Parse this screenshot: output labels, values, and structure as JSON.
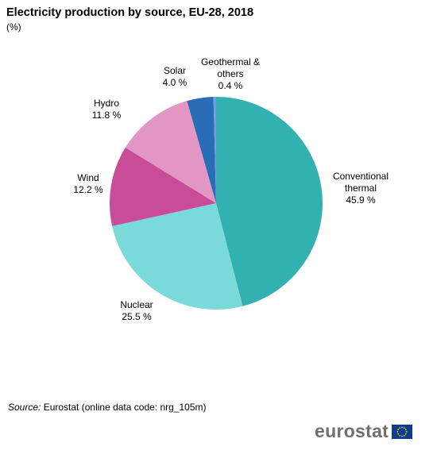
{
  "header": {
    "title": "Electricity production by source, EU-28, 2018",
    "subtitle": "(%)"
  },
  "chart_data": {
    "type": "pie",
    "title": "Electricity production by source, EU-28, 2018",
    "unit": "%",
    "slices": [
      {
        "label": "Conventional thermal",
        "label_lines": [
          "Conventional",
          "thermal"
        ],
        "value": 45.9,
        "value_text": "45.9 %",
        "color": "#33b1b0"
      },
      {
        "label": "Nuclear",
        "label_lines": [
          "Nuclear"
        ],
        "value": 25.5,
        "value_text": "25.5 %",
        "color": "#7adada"
      },
      {
        "label": "Wind",
        "label_lines": [
          "Wind"
        ],
        "value": 12.2,
        "value_text": "12.2 %",
        "color": "#c94c98"
      },
      {
        "label": "Hydro",
        "label_lines": [
          "Hydro"
        ],
        "value": 11.8,
        "value_text": "11.8 %",
        "color": "#e196c4"
      },
      {
        "label": "Solar",
        "label_lines": [
          "Solar"
        ],
        "value": 4.0,
        "value_text": "4.0 %",
        "color": "#2a6db7"
      },
      {
        "label": "Geothermal & others",
        "label_lines": [
          "Geothermal &",
          "others"
        ],
        "value": 0.4,
        "value_text": "0.4 %",
        "color": "#6aa1dc"
      }
    ]
  },
  "footer": {
    "source_label": "Source:",
    "source_text": "Eurostat (online data code: nrg_105m)",
    "logo_text": "eurostat",
    "flag_colors": {
      "background": "#0d3d91",
      "stars": "#f5d000"
    }
  }
}
